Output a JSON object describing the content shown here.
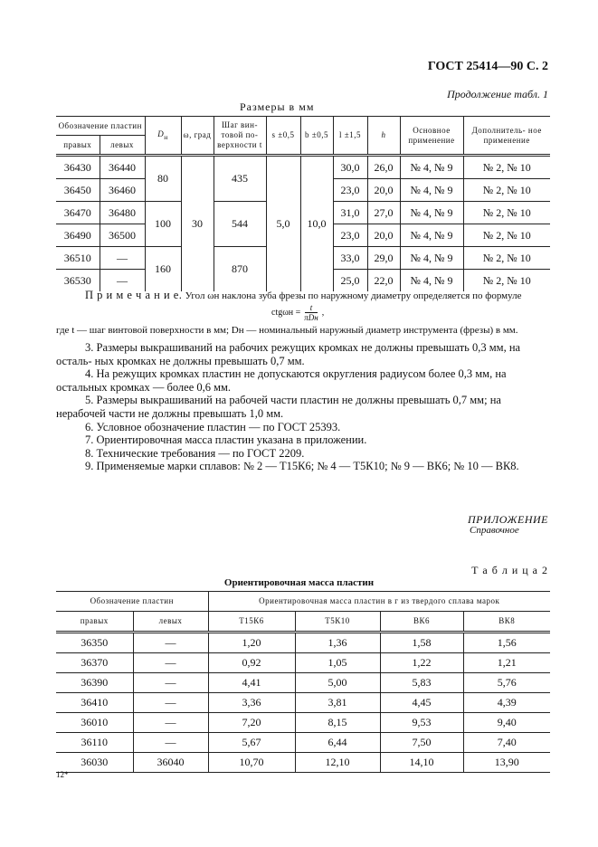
{
  "header": {
    "doc_ref": "ГОСТ 25414—90 С. 2",
    "continuation": "Продолжение табл. 1",
    "dims_caption": "Размеры в мм"
  },
  "table1": {
    "headers": {
      "designation": "Обозначение пластин",
      "right": "правых",
      "left": "левых",
      "D": "D",
      "D_sub": "н",
      "omega": "ω, град",
      "pitch": "Шаг вин- товой по- верхности t",
      "s": "s ±0,5",
      "b": "b ±0,5",
      "l": "l ±1,5",
      "h": "h",
      "main": "Основное применение",
      "extra": "Дополнитель- ное применение"
    },
    "rows": [
      {
        "right": "36430",
        "left": "36440",
        "l": "30,0",
        "h": "26,0",
        "main": "№ 4, № 9",
        "extra": "№ 2, № 10"
      },
      {
        "right": "36450",
        "left": "36460",
        "l": "23,0",
        "h": "20,0",
        "main": "№ 4, № 9",
        "extra": "№ 2, № 10"
      },
      {
        "right": "36470",
        "left": "36480",
        "l": "31,0",
        "h": "27,0",
        "main": "№ 4, № 9",
        "extra": "№ 2, № 10"
      },
      {
        "right": "36490",
        "left": "36500",
        "l": "23,0",
        "h": "20,0",
        "main": "№ 4, № 9",
        "extra": "№ 2, № 10"
      },
      {
        "right": "36510",
        "left": "—",
        "l": "33,0",
        "h": "29,0",
        "main": "№ 4, № 9",
        "extra": "№ 2, № 10"
      },
      {
        "right": "36530",
        "left": "—",
        "l": "25,0",
        "h": "22,0",
        "main": "№ 4, № 9",
        "extra": "№ 2, № 10"
      }
    ],
    "D_groups": [
      "80",
      "100",
      "160"
    ],
    "pitch_groups": [
      "435",
      "544",
      "870"
    ],
    "omega": "30",
    "s": "5,0",
    "b": "10,0"
  },
  "notes": {
    "note_label": "П р и м е ч а н и е.",
    "note_text": "Угол ωн наклона зуба фрезы по наружному диаметру определяется по формуле",
    "formula_left": "ctgωн =",
    "formula_num": "t",
    "formula_den": "πDн",
    "where": "где t — шаг винтовой поверхности в мм; Dн — номинальный наружный диаметр инструмента (фрезы) в мм.",
    "items": [
      "3. Размеры выкрашиваний на рабочих режущих кромках не должны превышать 0,3 мм, на осталь- ных кромках не должны превышать 0,7 мм.",
      "4. На режущих кромках пластин не допускаются округления радиусом более 0,3 мм, на остальных кромках — более 0,6 мм.",
      "5. Размеры выкрашиваний на рабочей части пластин не должны превышать 0,7 мм; на нерабочей части не должны превышать 1,0 мм.",
      "6. Условное обозначение пластин — по ГОСТ 25393.",
      "7. Ориентировочная масса пластин указана в приложении.",
      "8. Технические требования — по ГОСТ 2209.",
      "9. Применяемые марки сплавов: № 2 — Т15К6; № 4 — Т5К10; № 9 — ВК6; № 10 — ВК8."
    ]
  },
  "appendix": {
    "title": "ПРИЛОЖЕНИЕ",
    "subtitle": "Справочное"
  },
  "table2": {
    "label": "Т а б л и ц а 2",
    "title": "Ориентировочная масса пластин",
    "headers": {
      "designation": "Обозначение пластин",
      "mass": "Ориентировочная масса пластин в г из твердого сплава марок",
      "right": "правых",
      "left": "левых",
      "grades": [
        "Т15К6",
        "Т5К10",
        "ВК6",
        "ВК8"
      ]
    },
    "rows": [
      [
        "36350",
        "—",
        "1,20",
        "1,36",
        "1,58",
        "1,56"
      ],
      [
        "36370",
        "—",
        "0,92",
        "1,05",
        "1,22",
        "1,21"
      ],
      [
        "36390",
        "—",
        "4,41",
        "5,00",
        "5,83",
        "5,76"
      ],
      [
        "36410",
        "—",
        "3,36",
        "3,81",
        "4,45",
        "4,39"
      ],
      [
        "36010",
        "—",
        "7,20",
        "8,15",
        "9,53",
        "9,40"
      ],
      [
        "36110",
        "—",
        "5,67",
        "6,44",
        "7,50",
        "7,40"
      ],
      [
        "36030",
        "36040",
        "10,70",
        "12,10",
        "14,10",
        "13,90"
      ]
    ]
  },
  "footer": {
    "page_mark": "12*"
  }
}
